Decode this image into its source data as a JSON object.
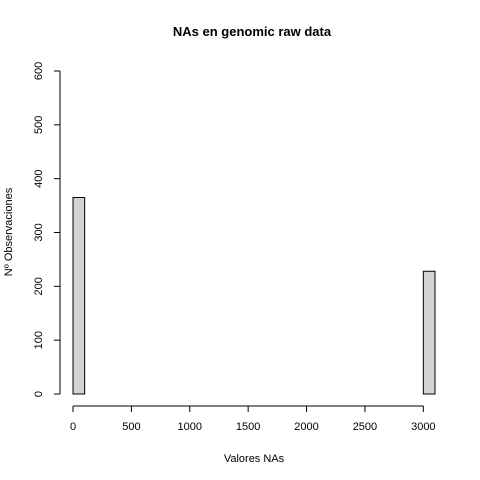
{
  "chart_data": {
    "type": "bar",
    "title": "NAs en genomic raw data",
    "xlabel": "Valores NAs",
    "ylabel": "Nº Observaciones",
    "bin_width": 100,
    "xlim": [
      0,
      3100
    ],
    "ylim": [
      0,
      600
    ],
    "x_ticks": [
      0,
      500,
      1000,
      1500,
      2000,
      2500,
      3000
    ],
    "y_ticks": [
      0,
      100,
      200,
      300,
      400,
      500,
      600
    ],
    "bins": [
      {
        "start": 0,
        "end": 100,
        "count": 365
      },
      {
        "start": 100,
        "end": 200,
        "count": 0
      },
      {
        "start": 200,
        "end": 300,
        "count": 0
      },
      {
        "start": 300,
        "end": 400,
        "count": 0
      },
      {
        "start": 400,
        "end": 500,
        "count": 0
      },
      {
        "start": 500,
        "end": 600,
        "count": 0
      },
      {
        "start": 600,
        "end": 700,
        "count": 0
      },
      {
        "start": 700,
        "end": 800,
        "count": 0
      },
      {
        "start": 800,
        "end": 900,
        "count": 0
      },
      {
        "start": 900,
        "end": 1000,
        "count": 0
      },
      {
        "start": 1000,
        "end": 1100,
        "count": 0
      },
      {
        "start": 1100,
        "end": 1200,
        "count": 0
      },
      {
        "start": 1200,
        "end": 1300,
        "count": 0
      },
      {
        "start": 1300,
        "end": 1400,
        "count": 0
      },
      {
        "start": 1400,
        "end": 1500,
        "count": 0
      },
      {
        "start": 1500,
        "end": 1600,
        "count": 0
      },
      {
        "start": 1600,
        "end": 1700,
        "count": 0
      },
      {
        "start": 1700,
        "end": 1800,
        "count": 0
      },
      {
        "start": 1800,
        "end": 1900,
        "count": 0
      },
      {
        "start": 1900,
        "end": 2000,
        "count": 0
      },
      {
        "start": 2000,
        "end": 2100,
        "count": 0
      },
      {
        "start": 2100,
        "end": 2200,
        "count": 0
      },
      {
        "start": 2200,
        "end": 2300,
        "count": 0
      },
      {
        "start": 2300,
        "end": 2400,
        "count": 0
      },
      {
        "start": 2400,
        "end": 2500,
        "count": 0
      },
      {
        "start": 2500,
        "end": 2600,
        "count": 0
      },
      {
        "start": 2600,
        "end": 2700,
        "count": 0
      },
      {
        "start": 2700,
        "end": 2800,
        "count": 0
      },
      {
        "start": 2800,
        "end": 2900,
        "count": 0
      },
      {
        "start": 2900,
        "end": 3000,
        "count": 0
      },
      {
        "start": 3000,
        "end": 3100,
        "count": 228
      }
    ],
    "grid": false,
    "bar_color": "#d3d3d3"
  }
}
